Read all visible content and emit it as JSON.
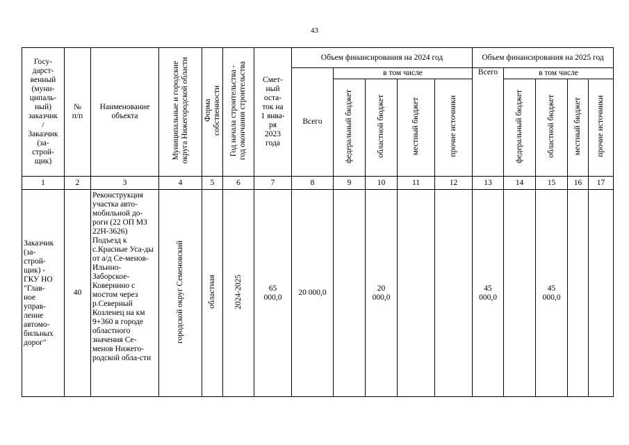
{
  "page_number": "43",
  "header": {
    "customer": "Госу-\nдарст-\nвенный\n(муни-\nципаль-\nный)\nзаказчик\n/\nЗаказчик\n(за-\nстрой-\nщик)",
    "num": "№\nп/п",
    "name": "Наименование\nобъекта",
    "municipality": "Муниципальные и городские\nокруга Нижегородской области",
    "ownership": "Форма\nсобственности",
    "years": "Год начала строительства -\nгод окончания строительства",
    "estimate": "Смет-\nный\nоста-\nток на\n1 янва-\nря\n2023\nгода",
    "fin2024": "Объем финансирования на 2024 год",
    "fin2025": "Объем финансирования на 2025 год",
    "total": "Всего",
    "including": "в том числе",
    "federal": "федеральный бюджет",
    "regional": "областной бюджет",
    "local": "местный бюджет",
    "other": "прочие источники"
  },
  "column_numbers": [
    "1",
    "2",
    "3",
    "4",
    "5",
    "6",
    "7",
    "8",
    "9",
    "10",
    "11",
    "12",
    "13",
    "14",
    "15",
    "16",
    "17"
  ],
  "rows": [
    {
      "customer": "Заказчик\n(за-\nстрой-\nщик) -\nГКУ НО\n\"Глав-\nное\nуправ-\nление\nавтомо-\nбильных\nдорог\"",
      "num": "40",
      "name": "Реконструкция участка авто-мобильной до-роги (22 ОП МЗ 22Н-3626) Подъезд к с.Красные Уса-ды от а/д Се-менов-Ильино-Заборское-Ковернино с мостом через р.Северный Козленец на км 9+360  в городе областного значения Се-менов Нижего-родской обла-сти",
      "municipality": "городской округ Семеновский",
      "ownership": "областная",
      "years": "2024-2025",
      "estimate": "65\n000,0",
      "total_2024": "20 000,0",
      "federal_2024": "",
      "regional_2024": "20\n000,0",
      "local_2024": "",
      "other_2024": "",
      "total_2025": "45\n000,0",
      "federal_2025": "",
      "regional_2025": "45\n000,0",
      "local_2025": "",
      "other_2025": ""
    }
  ]
}
